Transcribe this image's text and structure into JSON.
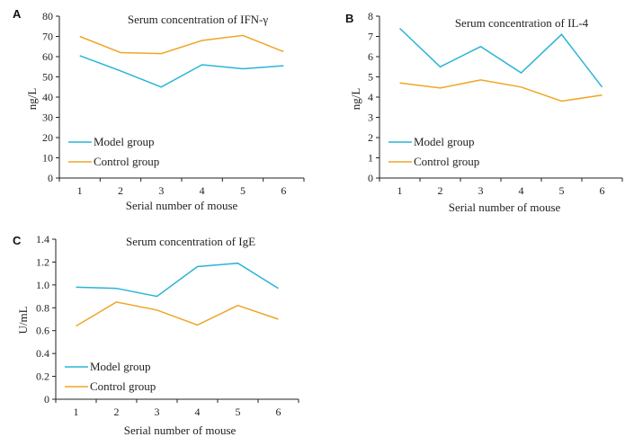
{
  "colors": {
    "model": "#29b5d6",
    "control": "#f0a526"
  },
  "chart_data": [
    {
      "panel": "A",
      "type": "line",
      "title": "Serum concentration of IFN-γ",
      "xlabel": "Serial number of mouse",
      "ylabel": "ng/L",
      "x": [
        1,
        2,
        3,
        4,
        5,
        6
      ],
      "ylim": [
        0,
        80
      ],
      "yticks": [
        0,
        10,
        20,
        30,
        40,
        50,
        60,
        70,
        80
      ],
      "series": [
        {
          "name": "Model group",
          "color": "#29b5d6",
          "values": [
            60.5,
            53,
            45,
            56,
            54,
            55.5
          ]
        },
        {
          "name": "Control group",
          "color": "#f0a526",
          "values": [
            70,
            62,
            61.5,
            68,
            70.5,
            62.5
          ]
        }
      ],
      "grid": false,
      "legend": "bottom-left"
    },
    {
      "panel": "B",
      "type": "line",
      "title": "Serum concentration of IL-4",
      "xlabel": "Serial number of mouse",
      "ylabel": "ng/L",
      "x": [
        1,
        2,
        3,
        4,
        5,
        6
      ],
      "ylim": [
        0,
        8
      ],
      "yticks": [
        0,
        1,
        2,
        3,
        4,
        5,
        6,
        7,
        8
      ],
      "series": [
        {
          "name": "Model group",
          "color": "#29b5d6",
          "values": [
            7.4,
            5.5,
            6.5,
            5.2,
            7.1,
            4.5
          ]
        },
        {
          "name": "Control group",
          "color": "#f0a526",
          "values": [
            4.7,
            4.45,
            4.85,
            4.5,
            3.8,
            4.1
          ]
        }
      ],
      "grid": false,
      "legend": "bottom-left"
    },
    {
      "panel": "C",
      "type": "line",
      "title": "Serum concentration of IgE",
      "xlabel": "Serial number of mouse",
      "ylabel": "U/mL",
      "x": [
        1,
        2,
        3,
        4,
        5,
        6
      ],
      "ylim": [
        0,
        1.4
      ],
      "yticks": [
        0,
        0.2,
        0.4,
        0.6,
        0.8,
        1.0,
        1.2,
        1.4
      ],
      "ytick_labels": [
        "0",
        "0.2",
        "0.4",
        "0.6",
        "0.8",
        "1.0",
        "1.2",
        "1.4"
      ],
      "series": [
        {
          "name": "Model group",
          "color": "#29b5d6",
          "values": [
            0.98,
            0.97,
            0.9,
            1.16,
            1.19,
            0.97
          ]
        },
        {
          "name": "Control group",
          "color": "#f0a526",
          "values": [
            0.64,
            0.85,
            0.78,
            0.65,
            0.82,
            0.7
          ]
        }
      ],
      "grid": false,
      "legend": "bottom-left"
    }
  ]
}
